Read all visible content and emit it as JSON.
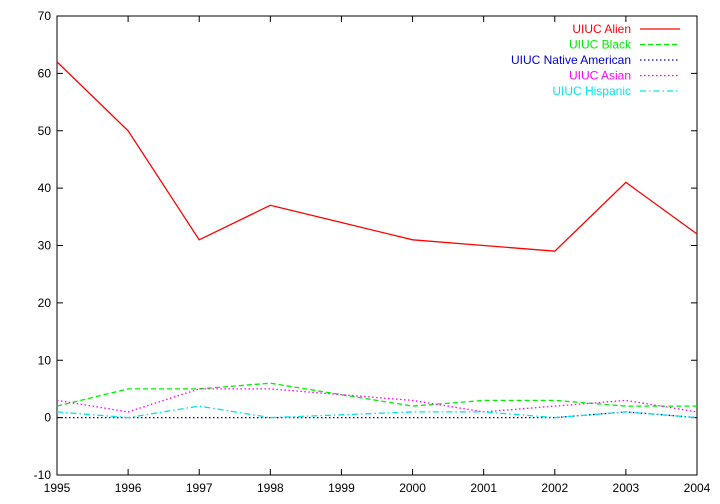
{
  "chart_data": {
    "type": "line",
    "title": "",
    "xlabel": "",
    "ylabel": "",
    "x": [
      1995,
      1996,
      1997,
      1998,
      1999,
      2000,
      2001,
      2002,
      2003,
      2004
    ],
    "xlim": [
      1995,
      2004
    ],
    "ylim": [
      -10,
      70
    ],
    "xticks": [
      "1995",
      "1996",
      "1997",
      "1998",
      "1999",
      "2000",
      "2001",
      "2002",
      "2003",
      "2004"
    ],
    "yticks": [
      "-10",
      "0",
      "10",
      "20",
      "30",
      "40",
      "50",
      "60",
      "70"
    ],
    "grid": false,
    "legend_position": "top-right",
    "series": [
      {
        "name": "UIUC Alien",
        "color": "#ff0000",
        "dash": "solid",
        "values": [
          62,
          50,
          31,
          37,
          34,
          31,
          30,
          29,
          41,
          32
        ]
      },
      {
        "name": "UIUC Black",
        "color": "#00ee00",
        "dash": "dashed",
        "values": [
          2,
          5,
          5,
          6,
          4,
          2,
          3,
          3,
          2,
          2
        ]
      },
      {
        "name": "UIUC Native American",
        "color": "#0000cc",
        "dash": "dotted",
        "values": [
          0,
          0,
          0,
          0,
          0,
          0,
          0,
          0,
          1,
          0
        ]
      },
      {
        "name": "UIUC Asian",
        "color": "#ff00ff",
        "dash": "dotted",
        "values": [
          3,
          1,
          5,
          5,
          4,
          3,
          1,
          2,
          3,
          1
        ]
      },
      {
        "name": "UIUC Hispanic",
        "color": "#00e5ee",
        "dash": "dashdot",
        "values": [
          1,
          0,
          2,
          0,
          0.5,
          1,
          1,
          0,
          1,
          0
        ]
      }
    ]
  }
}
